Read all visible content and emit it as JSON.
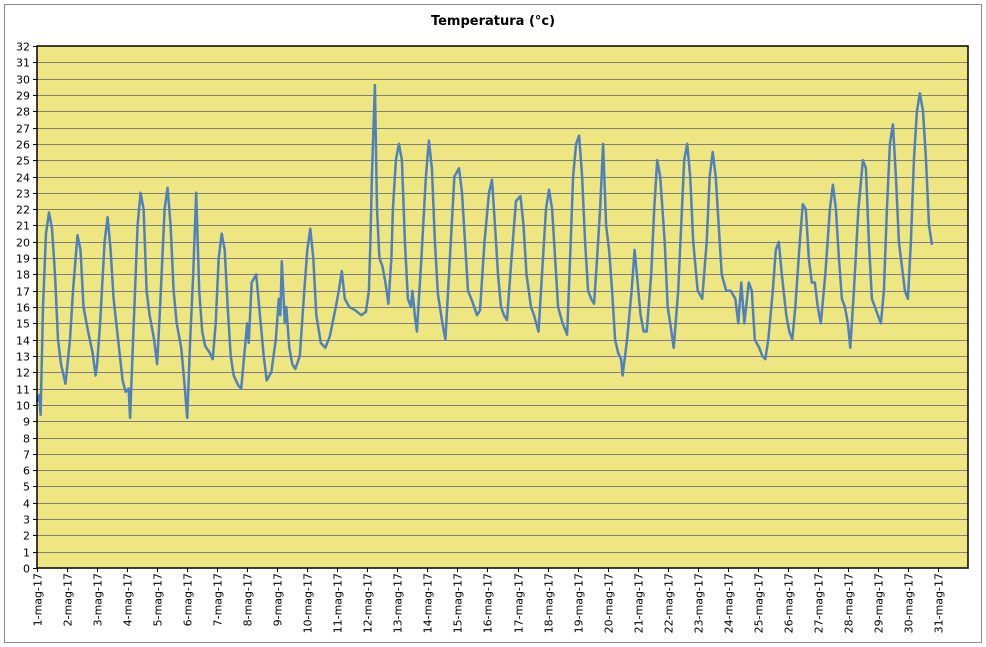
{
  "chart_data": {
    "type": "line",
    "title": "Temperatura (°c)",
    "xlabel": "",
    "ylabel": "",
    "ylim": [
      0,
      32
    ],
    "ytick_step": 1,
    "grid": true,
    "legend": "none",
    "colors": {
      "plot_background": "#EEE680",
      "gridline": "#7f7f7f",
      "line": "#4f81bd"
    },
    "x_tick_labels": [
      "1-mag-17",
      "2-mag-17",
      "3-mag-17",
      "4-mag-17",
      "5-mag-17",
      "6-mag-17",
      "7-mag-17",
      "8-mag-17",
      "9-mag-17",
      "10-mag-17",
      "11-mag-17",
      "12-mag-17",
      "13-mag-17",
      "14-mag-17",
      "15-mag-17",
      "16-mag-17",
      "17-mag-17",
      "18-mag-17",
      "19-mag-17",
      "20-mag-17",
      "21-mag-17",
      "22-mag-17",
      "23-mag-17",
      "24-mag-17",
      "25-mag-17",
      "26-mag-17",
      "27-mag-17",
      "28-mag-17",
      "29-mag-17",
      "30-mag-17",
      "31-mag-17"
    ],
    "series": [
      {
        "points": [
          [
            0.0,
            10.2
          ],
          [
            0.08,
            10.6
          ],
          [
            0.12,
            9.4
          ],
          [
            0.2,
            16
          ],
          [
            0.3,
            20.5
          ],
          [
            0.4,
            21.8
          ],
          [
            0.5,
            20.8
          ],
          [
            0.6,
            18
          ],
          [
            0.7,
            14
          ],
          [
            0.8,
            12.5
          ],
          [
            0.95,
            11.3
          ],
          [
            1.1,
            14
          ],
          [
            1.2,
            17
          ],
          [
            1.35,
            20.4
          ],
          [
            1.45,
            19.5
          ],
          [
            1.55,
            16
          ],
          [
            1.7,
            14.5
          ],
          [
            1.85,
            13.2
          ],
          [
            1.95,
            11.8
          ],
          [
            2.0,
            12.5
          ],
          [
            2.1,
            15
          ],
          [
            2.25,
            20
          ],
          [
            2.35,
            21.5
          ],
          [
            2.45,
            19.5
          ],
          [
            2.55,
            16.5
          ],
          [
            2.7,
            14
          ],
          [
            2.85,
            11.5
          ],
          [
            2.95,
            10.8
          ],
          [
            3.05,
            11
          ],
          [
            3.1,
            9.2
          ],
          [
            3.2,
            14
          ],
          [
            3.35,
            21
          ],
          [
            3.45,
            23
          ],
          [
            3.55,
            22
          ],
          [
            3.65,
            17
          ],
          [
            3.75,
            15.5
          ],
          [
            3.9,
            14
          ],
          [
            4.0,
            12.5
          ],
          [
            4.1,
            16
          ],
          [
            4.25,
            22
          ],
          [
            4.35,
            23.3
          ],
          [
            4.45,
            21
          ],
          [
            4.55,
            17
          ],
          [
            4.65,
            15
          ],
          [
            4.8,
            13.5
          ],
          [
            4.9,
            11.5
          ],
          [
            5.0,
            9.2
          ],
          [
            5.1,
            14
          ],
          [
            5.2,
            18
          ],
          [
            5.3,
            23
          ],
          [
            5.4,
            17
          ],
          [
            5.5,
            14.5
          ],
          [
            5.6,
            13.6
          ],
          [
            5.75,
            13.2
          ],
          [
            5.85,
            12.8
          ],
          [
            5.95,
            15
          ],
          [
            6.05,
            19
          ],
          [
            6.15,
            20.5
          ],
          [
            6.25,
            19.5
          ],
          [
            6.35,
            16
          ],
          [
            6.45,
            13
          ],
          [
            6.55,
            11.8
          ],
          [
            6.7,
            11.2
          ],
          [
            6.8,
            11
          ],
          [
            6.9,
            13
          ],
          [
            7.0,
            15
          ],
          [
            7.05,
            13.8
          ],
          [
            7.15,
            17.5
          ],
          [
            7.3,
            18
          ],
          [
            7.4,
            16
          ],
          [
            7.55,
            13
          ],
          [
            7.65,
            11.5
          ],
          [
            7.8,
            12
          ],
          [
            7.95,
            14
          ],
          [
            8.05,
            16.5
          ],
          [
            8.1,
            15.5
          ],
          [
            8.15,
            18.8
          ],
          [
            8.25,
            15
          ],
          [
            8.3,
            16
          ],
          [
            8.4,
            13.5
          ],
          [
            8.5,
            12.5
          ],
          [
            8.6,
            12.2
          ],
          [
            8.75,
            13
          ],
          [
            8.9,
            17
          ],
          [
            9.0,
            19.5
          ],
          [
            9.1,
            20.8
          ],
          [
            9.2,
            19
          ],
          [
            9.3,
            15.5
          ],
          [
            9.45,
            13.8
          ],
          [
            9.6,
            13.5
          ],
          [
            9.75,
            14.2
          ],
          [
            9.95,
            16
          ],
          [
            10.05,
            17
          ],
          [
            10.15,
            18.2
          ],
          [
            10.25,
            16.5
          ],
          [
            10.4,
            16
          ],
          [
            10.6,
            15.8
          ],
          [
            10.8,
            15.5
          ],
          [
            10.95,
            15.7
          ],
          [
            11.05,
            17
          ],
          [
            11.1,
            20
          ],
          [
            11.15,
            24
          ],
          [
            11.25,
            29.6
          ],
          [
            11.32,
            22
          ],
          [
            11.4,
            19
          ],
          [
            11.5,
            18.5
          ],
          [
            11.6,
            17.5
          ],
          [
            11.7,
            16.2
          ],
          [
            11.8,
            19
          ],
          [
            11.85,
            22
          ],
          [
            11.95,
            25
          ],
          [
            12.05,
            26
          ],
          [
            12.15,
            25
          ],
          [
            12.25,
            20
          ],
          [
            12.35,
            16.5
          ],
          [
            12.45,
            16
          ],
          [
            12.5,
            17
          ],
          [
            12.58,
            15.5
          ],
          [
            12.65,
            14.5
          ],
          [
            12.8,
            19
          ],
          [
            12.95,
            24
          ],
          [
            13.05,
            26.2
          ],
          [
            13.15,
            24.5
          ],
          [
            13.25,
            20
          ],
          [
            13.35,
            16.8
          ],
          [
            13.5,
            15
          ],
          [
            13.6,
            14
          ],
          [
            13.75,
            19
          ],
          [
            13.9,
            24
          ],
          [
            14.05,
            24.5
          ],
          [
            14.15,
            23
          ],
          [
            14.25,
            20
          ],
          [
            14.35,
            17
          ],
          [
            14.5,
            16.3
          ],
          [
            14.65,
            15.5
          ],
          [
            14.75,
            15.8
          ],
          [
            14.9,
            20
          ],
          [
            15.05,
            23
          ],
          [
            15.15,
            23.8
          ],
          [
            15.25,
            21
          ],
          [
            15.35,
            18
          ],
          [
            15.45,
            16
          ],
          [
            15.55,
            15.5
          ],
          [
            15.65,
            15.2
          ],
          [
            15.8,
            19
          ],
          [
            15.95,
            22.5
          ],
          [
            16.1,
            22.8
          ],
          [
            16.2,
            21
          ],
          [
            16.3,
            18
          ],
          [
            16.45,
            16
          ],
          [
            16.55,
            15.5
          ],
          [
            16.7,
            14.5
          ],
          [
            16.85,
            19
          ],
          [
            16.95,
            22
          ],
          [
            17.05,
            23.2
          ],
          [
            17.15,
            22
          ],
          [
            17.25,
            19
          ],
          [
            17.35,
            16
          ],
          [
            17.5,
            15
          ],
          [
            17.65,
            14.3
          ],
          [
            17.75,
            19
          ],
          [
            17.85,
            24
          ],
          [
            17.95,
            26
          ],
          [
            18.05,
            26.5
          ],
          [
            18.15,
            24
          ],
          [
            18.25,
            20
          ],
          [
            18.35,
            17
          ],
          [
            18.45,
            16.5
          ],
          [
            18.55,
            16.2
          ],
          [
            18.65,
            19
          ],
          [
            18.75,
            22
          ],
          [
            18.85,
            26
          ],
          [
            18.95,
            21
          ],
          [
            19.05,
            19.5
          ],
          [
            19.15,
            17
          ],
          [
            19.25,
            14
          ],
          [
            19.35,
            13.2
          ],
          [
            19.45,
            12.8
          ],
          [
            19.5,
            11.8
          ],
          [
            19.65,
            14
          ],
          [
            19.8,
            17
          ],
          [
            19.9,
            19.5
          ],
          [
            20.0,
            17.5
          ],
          [
            20.1,
            15.5
          ],
          [
            20.2,
            14.5
          ],
          [
            20.3,
            14.5
          ],
          [
            20.45,
            18
          ],
          [
            20.55,
            22
          ],
          [
            20.65,
            25
          ],
          [
            20.75,
            24
          ],
          [
            20.9,
            20
          ],
          [
            21.0,
            16
          ],
          [
            21.1,
            14.8
          ],
          [
            21.2,
            13.5
          ],
          [
            21.35,
            17
          ],
          [
            21.45,
            21
          ],
          [
            21.55,
            25
          ],
          [
            21.65,
            26
          ],
          [
            21.75,
            24
          ],
          [
            21.85,
            20
          ],
          [
            22.0,
            17
          ],
          [
            22.15,
            16.5
          ],
          [
            22.3,
            20
          ],
          [
            22.4,
            24
          ],
          [
            22.5,
            25.5
          ],
          [
            22.6,
            24
          ],
          [
            22.7,
            21
          ],
          [
            22.8,
            18
          ],
          [
            22.95,
            17
          ],
          [
            23.1,
            17
          ],
          [
            23.25,
            16.5
          ],
          [
            23.35,
            15
          ],
          [
            23.45,
            17.5
          ],
          [
            23.55,
            15
          ],
          [
            23.7,
            17.5
          ],
          [
            23.8,
            17
          ],
          [
            23.9,
            14
          ],
          [
            24.05,
            13.5
          ],
          [
            24.15,
            13
          ],
          [
            24.25,
            12.8
          ],
          [
            24.35,
            14
          ],
          [
            24.5,
            17
          ],
          [
            24.6,
            19.5
          ],
          [
            24.7,
            20
          ],
          [
            24.8,
            18
          ],
          [
            24.95,
            15.5
          ],
          [
            25.05,
            14.5
          ],
          [
            25.15,
            14
          ],
          [
            25.25,
            16
          ],
          [
            25.4,
            20
          ],
          [
            25.5,
            22.3
          ],
          [
            25.6,
            22
          ],
          [
            25.7,
            19
          ],
          [
            25.8,
            17.5
          ],
          [
            25.9,
            17.5
          ],
          [
            26.0,
            16
          ],
          [
            26.1,
            15
          ],
          [
            26.25,
            18
          ],
          [
            26.4,
            22
          ],
          [
            26.5,
            23.5
          ],
          [
            26.6,
            22
          ],
          [
            26.7,
            19
          ],
          [
            26.8,
            16.5
          ],
          [
            26.9,
            16
          ],
          [
            27.0,
            15
          ],
          [
            27.08,
            13.5
          ],
          [
            27.2,
            17
          ],
          [
            27.35,
            22
          ],
          [
            27.5,
            25
          ],
          [
            27.6,
            24.5
          ],
          [
            27.7,
            20
          ],
          [
            27.8,
            16.5
          ],
          [
            27.9,
            16
          ],
          [
            28.0,
            15.5
          ],
          [
            28.1,
            15
          ],
          [
            28.2,
            17
          ],
          [
            28.3,
            22
          ],
          [
            28.4,
            26
          ],
          [
            28.5,
            27.2
          ],
          [
            28.6,
            24
          ],
          [
            28.7,
            20
          ],
          [
            28.8,
            18.5
          ],
          [
            28.9,
            17
          ],
          [
            29.0,
            16.5
          ],
          [
            29.1,
            20
          ],
          [
            29.2,
            25
          ],
          [
            29.3,
            28
          ],
          [
            29.4,
            29.1
          ],
          [
            29.5,
            28
          ],
          [
            29.6,
            25
          ],
          [
            29.7,
            21
          ],
          [
            29.8,
            19.8
          ]
        ]
      }
    ]
  }
}
